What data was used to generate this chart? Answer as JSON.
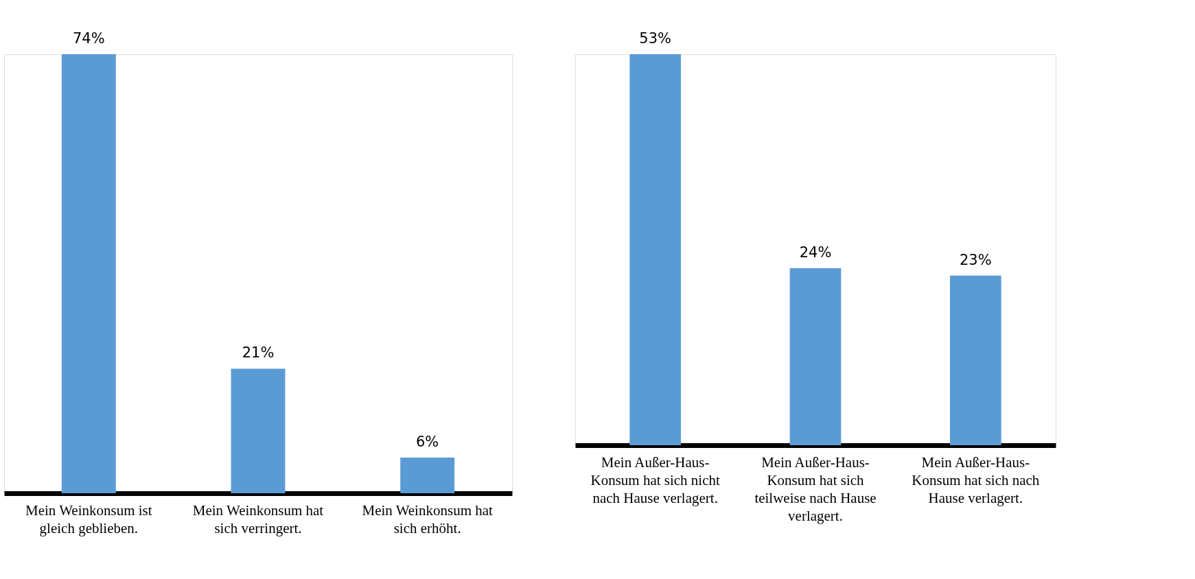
{
  "chart_data": [
    {
      "type": "bar",
      "categories": [
        "Mein Weinkonsum ist gleich geblieben.",
        "Mein Weinkonsum hat sich verringert.",
        "Mein Weinkonsum hat sich erhöht."
      ],
      "values": [
        74,
        21,
        6
      ],
      "value_labels": [
        "74%",
        "21%",
        "6%"
      ],
      "color": "#5b9bd5"
    },
    {
      "type": "bar",
      "categories": [
        "Mein Außer-Haus-Konsum hat sich nicht nach Hause verlagert.",
        "Mein Außer-Haus-Konsum hat sich teilweise nach Hause verlagert.",
        "Mein Außer-Haus-Konsum hat sich nach Hause verlagert."
      ],
      "values": [
        53,
        24,
        23
      ],
      "value_labels": [
        "53%",
        "24%",
        "23%"
      ],
      "color": "#5b9bd5"
    }
  ]
}
